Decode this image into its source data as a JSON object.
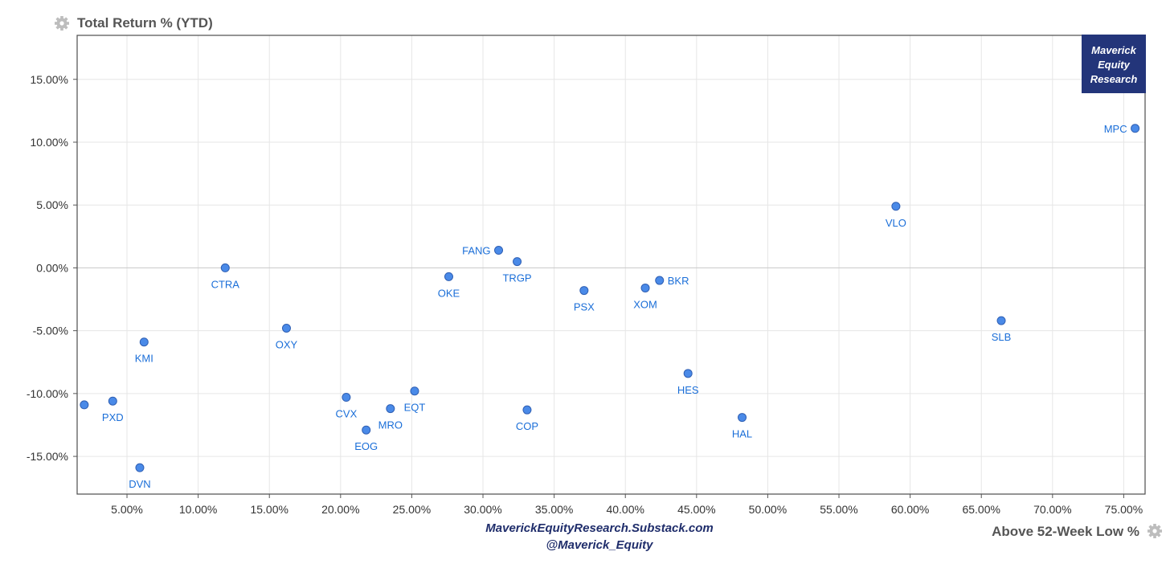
{
  "chart_data": {
    "type": "scatter",
    "title": "Total Return % (YTD)",
    "xlabel": "Above 52-Week Low %",
    "ylabel": "Total Return % (YTD)",
    "xlim": [
      1.5,
      76.5
    ],
    "ylim": [
      -18.0,
      18.5
    ],
    "x_ticks": [
      5,
      10,
      15,
      20,
      25,
      30,
      35,
      40,
      45,
      50,
      55,
      60,
      65,
      70,
      75
    ],
    "y_ticks": [
      -15,
      -10,
      -5,
      0,
      5,
      10,
      15
    ],
    "grid": true,
    "points": [
      {
        "label": "",
        "x": 2.0,
        "y": -10.9,
        "pos": "below"
      },
      {
        "label": "PXD",
        "x": 4.0,
        "y": -10.6,
        "pos": "below"
      },
      {
        "label": "DVN",
        "x": 5.9,
        "y": -15.9,
        "pos": "below"
      },
      {
        "label": "KMI",
        "x": 6.2,
        "y": -5.9,
        "pos": "below"
      },
      {
        "label": "CTRA",
        "x": 11.9,
        "y": 0.0,
        "pos": "below"
      },
      {
        "label": "OXY",
        "x": 16.2,
        "y": -4.8,
        "pos": "below"
      },
      {
        "label": "CVX",
        "x": 20.4,
        "y": -10.3,
        "pos": "below"
      },
      {
        "label": "EOG",
        "x": 21.8,
        "y": -12.9,
        "pos": "below"
      },
      {
        "label": "MRO",
        "x": 23.5,
        "y": -11.2,
        "pos": "below"
      },
      {
        "label": "EQT",
        "x": 25.2,
        "y": -9.8,
        "pos": "below"
      },
      {
        "label": "OKE",
        "x": 27.6,
        "y": -0.7,
        "pos": "below"
      },
      {
        "label": "FANG",
        "x": 31.1,
        "y": 1.4,
        "pos": "left"
      },
      {
        "label": "TRGP",
        "x": 32.4,
        "y": 0.5,
        "pos": "below"
      },
      {
        "label": "COP",
        "x": 33.1,
        "y": -11.3,
        "pos": "below"
      },
      {
        "label": "PSX",
        "x": 37.1,
        "y": -1.8,
        "pos": "below"
      },
      {
        "label": "XOM",
        "x": 41.4,
        "y": -1.6,
        "pos": "below"
      },
      {
        "label": "BKR",
        "x": 42.4,
        "y": -1.0,
        "pos": "right"
      },
      {
        "label": "HES",
        "x": 44.4,
        "y": -8.4,
        "pos": "below"
      },
      {
        "label": "HAL",
        "x": 48.2,
        "y": -11.9,
        "pos": "below"
      },
      {
        "label": "VLO",
        "x": 59.0,
        "y": 4.9,
        "pos": "below"
      },
      {
        "label": "SLB",
        "x": 66.4,
        "y": -4.2,
        "pos": "below"
      },
      {
        "label": "MPC",
        "x": 75.8,
        "y": 11.1,
        "pos": "left"
      }
    ],
    "point_color": "#4a8ae8",
    "label_color": "#1a6ed8"
  },
  "badge": {
    "lines": [
      "Maverick",
      "Equity",
      "Research"
    ],
    "color": "#23357a"
  },
  "credits": {
    "line1": "MaverickEquityResearch.Substack.com",
    "line2": "@Maverick_Equity"
  },
  "icons": {
    "title_icon": "gear-icon",
    "xlabel_icon": "gear-icon"
  }
}
